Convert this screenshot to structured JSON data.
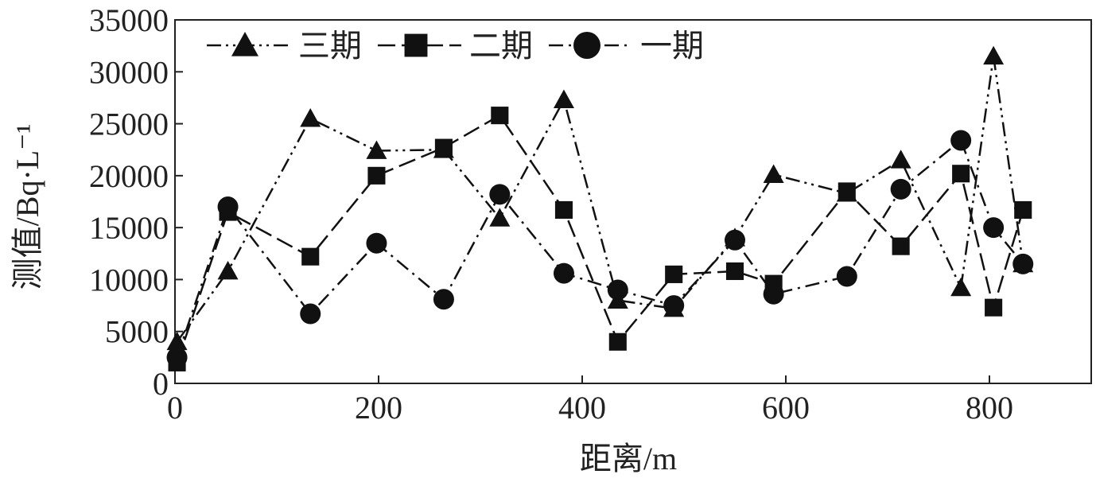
{
  "chart_data": {
    "type": "line",
    "xlabel": "距离/m",
    "ylabel": "测值/Bq·L⁻¹",
    "x": [
      2,
      52,
      133,
      198,
      264,
      319,
      382,
      435,
      490,
      550,
      588,
      660,
      713,
      772,
      804,
      833
    ],
    "series": [
      {
        "name": "三期",
        "color": "#111111",
        "marker": "triangle",
        "dash": "dash-dot-dot",
        "values": [
          4000,
          10800,
          25500,
          22400,
          22500,
          15900,
          27300,
          8000,
          7200,
          14000,
          20100,
          18300,
          21500,
          9200,
          31500,
          11500
        ]
      },
      {
        "name": "二期",
        "color": "#111111",
        "marker": "square",
        "dash": "dash",
        "values": [
          2000,
          16500,
          12200,
          20000,
          22700,
          25800,
          16700,
          4000,
          10500,
          10800,
          9600,
          18500,
          13200,
          20200,
          7300,
          16700
        ]
      },
      {
        "name": "一期",
        "color": "#111111",
        "marker": "circle",
        "dash": "dash-dot",
        "values": [
          2500,
          17000,
          6700,
          13500,
          8100,
          18200,
          10600,
          9000,
          7500,
          13800,
          8600,
          10300,
          18700,
          23400,
          15000,
          11500
        ]
      }
    ],
    "xlim": [
      0,
      900
    ],
    "xticks": [
      0,
      200,
      400,
      600,
      800
    ],
    "ylim": [
      0,
      35000
    ],
    "yticks": [
      0,
      5000,
      10000,
      15000,
      20000,
      25000,
      30000,
      35000
    ],
    "legend": "top-left"
  }
}
